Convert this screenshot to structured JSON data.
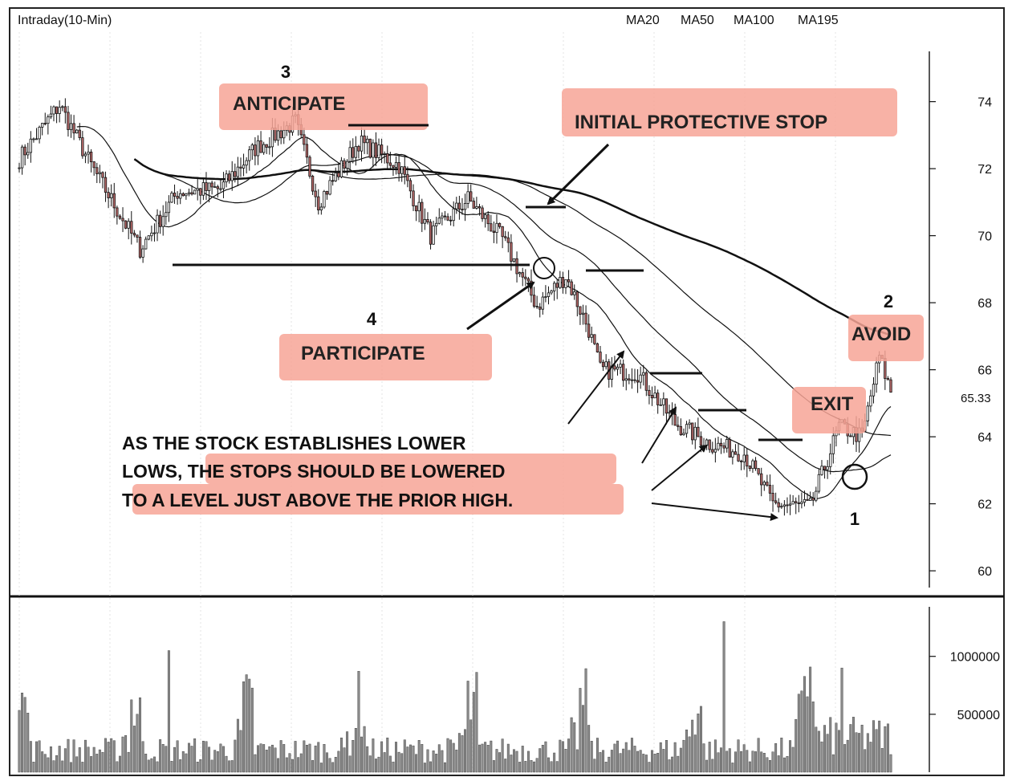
{
  "header": {
    "title": "Intraday(10-Min)",
    "ma_labels": [
      "MA20",
      "MA50",
      "MA100",
      "MA195"
    ]
  },
  "price_axis": {
    "ticks": [
      60,
      62,
      64,
      66,
      68,
      70,
      72,
      74
    ],
    "last_price_label": "65.33"
  },
  "volume_axis": {
    "ticks": [
      "500000",
      "1000000"
    ]
  },
  "annotations": {
    "num_3": "3",
    "anticipate": "ANTICIPATE",
    "initial_stop": "INITIAL PROTECTIVE STOP",
    "num_4": "4",
    "participate": "PARTICIPATE",
    "num_2": "2",
    "avoid": "AVOID",
    "exit": "EXIT",
    "num_1": "1",
    "note_line1": "AS THE STOCK ESTABLISHES LOWER",
    "note_line2": "LOWS, THE STOPS SHOULD BE LOWERED",
    "note_line3": "TO A LEVEL JUST ABOVE THE PRIOR HIGH."
  },
  "colors": {
    "highlight": "#f7a596",
    "candle_up": "#ffffff",
    "candle_down": "#b86a6a",
    "line": "#111111",
    "volume_bar": "#8a8a8a"
  },
  "chart_data": {
    "type": "line",
    "title": "Intraday(10-Min)",
    "price_key_points": [
      {
        "bar": 0,
        "price": 72.3
      },
      {
        "bar": 14,
        "price": 73.9
      },
      {
        "bar": 25,
        "price": 72.1
      },
      {
        "bar": 42,
        "price": 69.6
      },
      {
        "bar": 55,
        "price": 71.3
      },
      {
        "bar": 70,
        "price": 71.4
      },
      {
        "bar": 82,
        "price": 72.6
      },
      {
        "bar": 96,
        "price": 73.4
      },
      {
        "bar": 104,
        "price": 71.0
      },
      {
        "bar": 118,
        "price": 72.8
      },
      {
        "bar": 132,
        "price": 72.1
      },
      {
        "bar": 143,
        "price": 70.0
      },
      {
        "bar": 156,
        "price": 71.1
      },
      {
        "bar": 168,
        "price": 69.9
      },
      {
        "bar": 180,
        "price": 67.9
      },
      {
        "bar": 190,
        "price": 68.8
      },
      {
        "bar": 198,
        "price": 67.2
      },
      {
        "bar": 202,
        "price": 66.0
      },
      {
        "bar": 215,
        "price": 65.9
      },
      {
        "bar": 228,
        "price": 64.4
      },
      {
        "bar": 240,
        "price": 63.8
      },
      {
        "bar": 252,
        "price": 63.5
      },
      {
        "bar": 262,
        "price": 62.0
      },
      {
        "bar": 275,
        "price": 61.9
      },
      {
        "bar": 285,
        "price": 64.3
      },
      {
        "bar": 293,
        "price": 64.0
      },
      {
        "bar": 299,
        "price": 66.4
      },
      {
        "bar": 303,
        "price": 65.33
      }
    ],
    "moving_averages": [
      {
        "name": "MA20",
        "period": 20
      },
      {
        "name": "MA50",
        "period": 50
      },
      {
        "name": "MA100",
        "period": 100
      },
      {
        "name": "MA195",
        "period": 195
      }
    ],
    "volume_range": [
      0,
      1400000
    ],
    "y_range": [
      59.5,
      75.5
    ],
    "last_price": 65.33,
    "support_level": 69.4,
    "initial_protective_stop": 71.1,
    "lowered_stops": [
      69.2,
      66.1,
      65.3,
      64.0
    ]
  }
}
